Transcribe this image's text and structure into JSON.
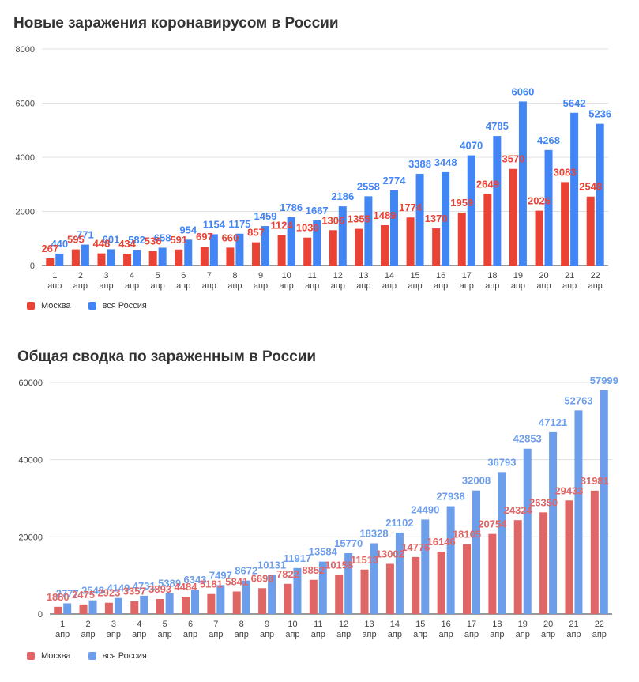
{
  "chart_data": [
    {
      "type": "bar",
      "title": "Новые заражения коронавирусом в России",
      "xlabel": "",
      "ylabel": "",
      "ylim": [
        0,
        8000
      ],
      "yticks": [
        "0",
        "2000",
        "4000",
        "6000",
        "8000"
      ],
      "categories": [
        [
          "1",
          "апр"
        ],
        [
          "2",
          "апр"
        ],
        [
          "3",
          "апр"
        ],
        [
          "4",
          "апр"
        ],
        [
          "5",
          "апр"
        ],
        [
          "6",
          "апр"
        ],
        [
          "7",
          "апр"
        ],
        [
          "8",
          "апр"
        ],
        [
          "9",
          "апр"
        ],
        [
          "10",
          "апр"
        ],
        [
          "11",
          "апр"
        ],
        [
          "12",
          "апр"
        ],
        [
          "13",
          "апр"
        ],
        [
          "14",
          "апр"
        ],
        [
          "15",
          "апр"
        ],
        [
          "16",
          "апр"
        ],
        [
          "17",
          "апр"
        ],
        [
          "18",
          "апр"
        ],
        [
          "19",
          "апр"
        ],
        [
          "20",
          "апр"
        ],
        [
          "21",
          "апр"
        ],
        [
          "22",
          "апр"
        ]
      ],
      "series": [
        {
          "name": "Москва",
          "color": "#ea4335",
          "label_color": "#ea4335",
          "values": [
            267,
            595,
            448,
            434,
            536,
            591,
            697,
            660,
            857,
            1124,
            1030,
            1306,
            1355,
            1489,
            1774,
            1370,
            1959,
            2649,
            3570,
            2026,
            3083,
            2548
          ]
        },
        {
          "name": "вся Россия",
          "color": "#4285f4",
          "label_color": "#4285f4",
          "values": [
            440,
            771,
            601,
            582,
            658,
            954,
            1154,
            1175,
            1459,
            1786,
            1667,
            2186,
            2558,
            2774,
            3388,
            3448,
            4070,
            4785,
            6060,
            4268,
            5642,
            5236
          ]
        }
      ],
      "legend": "bottom-left"
    },
    {
      "type": "bar",
      "title": "Общая сводка по зараженным в России",
      "xlabel": "",
      "ylabel": "",
      "ylim": [
        0,
        60000
      ],
      "yticks": [
        "0",
        "20000",
        "40000",
        "60000"
      ],
      "categories": [
        [
          "1",
          "апр"
        ],
        [
          "2",
          "апр"
        ],
        [
          "3",
          "апр"
        ],
        [
          "4",
          "апр"
        ],
        [
          "5",
          "апр"
        ],
        [
          "6",
          "апр"
        ],
        [
          "7",
          "апр"
        ],
        [
          "8",
          "апр"
        ],
        [
          "9",
          "апр"
        ],
        [
          "10",
          "апр"
        ],
        [
          "11",
          "апр"
        ],
        [
          "12",
          "апр"
        ],
        [
          "13",
          "апр"
        ],
        [
          "14",
          "апр"
        ],
        [
          "15",
          "апр"
        ],
        [
          "16",
          "апр"
        ],
        [
          "17",
          "апр"
        ],
        [
          "18",
          "апр"
        ],
        [
          "19",
          "апр"
        ],
        [
          "20",
          "апр"
        ],
        [
          "21",
          "апр"
        ],
        [
          "22",
          "апр"
        ]
      ],
      "series": [
        {
          "name": "Москва",
          "color": "#e06666",
          "label_color": "#e06666",
          "values": [
            1880,
            2475,
            2923,
            3357,
            3893,
            4484,
            5181,
            5841,
            6698,
            7822,
            8852,
            10158,
            11513,
            13002,
            14776,
            16146,
            18105,
            20754,
            24324,
            26350,
            29433,
            31981
          ]
        },
        {
          "name": "вся Россия",
          "color": "#6d9eeb",
          "label_color": "#6d9eeb",
          "values": [
            2777,
            3548,
            4149,
            4731,
            5389,
            6343,
            7497,
            8672,
            10131,
            11917,
            13584,
            15770,
            18328,
            21102,
            24490,
            27938,
            32008,
            36793,
            42853,
            47121,
            52763,
            57999
          ]
        }
      ],
      "legend": "bottom-left"
    }
  ]
}
